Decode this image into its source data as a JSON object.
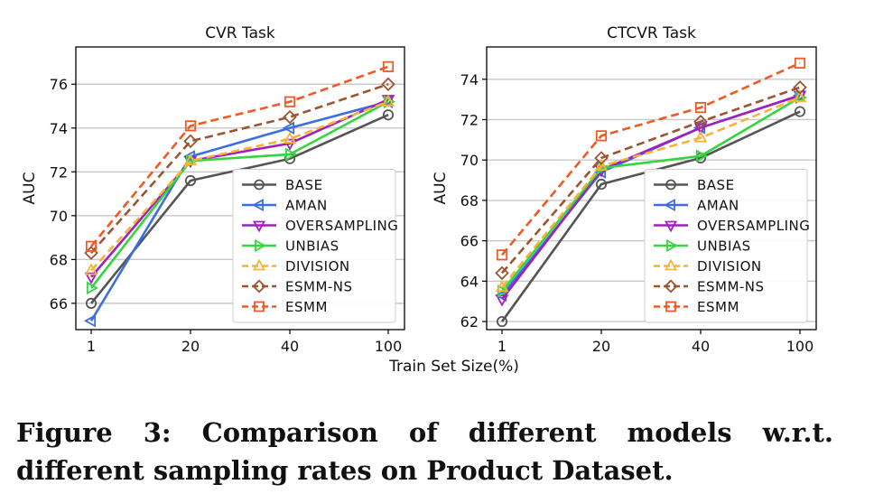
{
  "figure": {
    "caption": "Figure 3: Comparison of different models w.r.t. different sampling rates on Product Dataset.",
    "shared_xlabel": "Train Set Size(%)"
  },
  "chart_data": [
    {
      "type": "line",
      "title": "CVR Task",
      "xlabel": "",
      "ylabel": "AUC",
      "categories": [
        "1",
        "20",
        "40",
        "100"
      ],
      "ylim": [
        64.8,
        77.7
      ],
      "yticks": [
        66,
        68,
        70,
        72,
        74,
        76
      ],
      "grid": "horizontal",
      "legend": "bottom-right",
      "series": [
        {
          "name": "BASE",
          "color": "#555555",
          "marker": "circle",
          "dashed": false,
          "values": [
            66.0,
            71.6,
            72.6,
            74.6
          ]
        },
        {
          "name": "AMAN",
          "color": "#3c6ee0",
          "marker": "triangle-left",
          "dashed": false,
          "values": [
            65.2,
            72.7,
            74.0,
            75.2
          ]
        },
        {
          "name": "OVERSAMPLING",
          "color": "#a01fc0",
          "marker": "triangle-down",
          "dashed": false,
          "values": [
            67.2,
            72.5,
            73.3,
            75.3
          ]
        },
        {
          "name": "UNBIAS",
          "color": "#33d63d",
          "marker": "triangle-right",
          "dashed": false,
          "values": [
            66.7,
            72.5,
            72.8,
            75.2
          ]
        },
        {
          "name": "DIVISION",
          "color": "#f6b23a",
          "marker": "triangle-up",
          "dashed": true,
          "values": [
            67.5,
            72.5,
            73.5,
            75.2
          ]
        },
        {
          "name": "ESMM-NS",
          "color": "#9a5530",
          "marker": "diamond",
          "dashed": true,
          "values": [
            68.3,
            73.4,
            74.5,
            76.0
          ]
        },
        {
          "name": "ESMM",
          "color": "#ee5a24",
          "marker": "square",
          "dashed": true,
          "values": [
            68.6,
            74.1,
            75.2,
            76.8
          ]
        }
      ]
    },
    {
      "type": "line",
      "title": "CTCVR Task",
      "xlabel": "",
      "ylabel": "AUC",
      "categories": [
        "1",
        "20",
        "40",
        "100"
      ],
      "ylim": [
        61.6,
        75.6
      ],
      "yticks": [
        62,
        64,
        66,
        68,
        70,
        72,
        74
      ],
      "grid": "horizontal",
      "legend": "bottom-right",
      "series": [
        {
          "name": "BASE",
          "color": "#555555",
          "marker": "circle",
          "dashed": false,
          "values": [
            62.0,
            68.8,
            70.1,
            72.4
          ]
        },
        {
          "name": "AMAN",
          "color": "#3c6ee0",
          "marker": "triangle-left",
          "dashed": false,
          "values": [
            63.3,
            69.4,
            71.6,
            73.2
          ]
        },
        {
          "name": "OVERSAMPLING",
          "color": "#a01fc0",
          "marker": "triangle-down",
          "dashed": false,
          "values": [
            63.1,
            69.5,
            71.6,
            73.2
          ]
        },
        {
          "name": "UNBIAS",
          "color": "#33d63d",
          "marker": "triangle-right",
          "dashed": false,
          "values": [
            63.5,
            69.6,
            70.2,
            73.1
          ]
        },
        {
          "name": "DIVISION",
          "color": "#f6b23a",
          "marker": "triangle-up",
          "dashed": true,
          "values": [
            63.7,
            69.7,
            71.1,
            73.1
          ]
        },
        {
          "name": "ESMM-NS",
          "color": "#9a5530",
          "marker": "diamond",
          "dashed": true,
          "values": [
            64.4,
            70.1,
            71.9,
            73.6
          ]
        },
        {
          "name": "ESMM",
          "color": "#ee5a24",
          "marker": "square",
          "dashed": true,
          "values": [
            65.3,
            71.2,
            72.6,
            74.8
          ]
        }
      ]
    }
  ]
}
